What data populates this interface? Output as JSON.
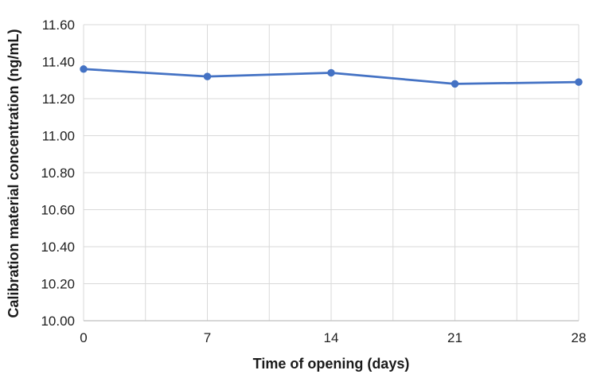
{
  "chart_data": {
    "type": "line",
    "series": [
      {
        "x": [
          0,
          7,
          14,
          21,
          28
        ],
        "values": [
          11.36,
          11.32,
          11.34,
          11.28,
          11.29
        ],
        "color": "#4472C4",
        "marker": "circle"
      }
    ],
    "xlabel": "Time of opening (days)",
    "ylabel": "Calibration material concentration (ng/mL)",
    "xlim": [
      0,
      28
    ],
    "ylim": [
      10.0,
      11.6
    ],
    "xticks": [
      0,
      7,
      14,
      21,
      28
    ],
    "xtick_labels": [
      "0",
      "7",
      "14",
      "21",
      "28"
    ],
    "yticks": [
      10.0,
      10.2,
      10.4,
      10.6,
      10.8,
      11.0,
      11.2,
      11.4,
      11.6
    ],
    "ytick_labels": [
      "10.00",
      "10.20",
      "10.40",
      "10.60",
      "10.80",
      "11.00",
      "11.20",
      "11.40",
      "11.60"
    ],
    "x_minor_grid_step": 3.5,
    "grid": true,
    "legend": "none",
    "colors": {
      "series": "#4472C4",
      "gridline": "#D9D9D9",
      "axis_line": "#BFBFBF",
      "tick_text": "#1f1f1f"
    }
  }
}
